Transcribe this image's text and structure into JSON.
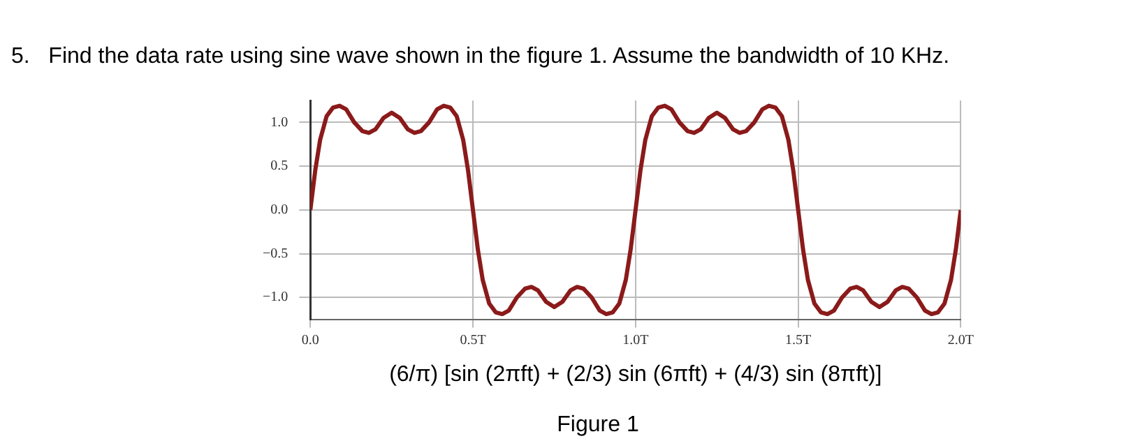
{
  "chart_data": {
    "type": "line",
    "title": "5.   Find the data rate using sine wave shown in the figure 1. Assume the bandwidth of 10 KHz.",
    "xlabel": "(6/π) [sin (2πft) + (2/3) sin (6πft) + (4/3) sin (8πft)]",
    "annotations": [
      "Figure 1"
    ],
    "x": [
      0,
      0.015,
      0.03,
      0.05,
      0.07,
      0.09,
      0.11,
      0.135,
      0.16,
      0.18,
      0.2,
      0.225,
      0.25,
      0.275,
      0.3,
      0.32,
      0.34,
      0.365,
      0.39,
      0.41,
      0.43,
      0.45,
      0.47,
      0.485,
      0.5,
      0.515,
      0.53,
      0.55,
      0.57,
      0.59,
      0.61,
      0.635,
      0.66,
      0.68,
      0.7,
      0.725,
      0.75,
      0.775,
      0.8,
      0.82,
      0.84,
      0.865,
      0.89,
      0.91,
      0.93,
      0.95,
      0.97,
      0.985,
      1,
      1.015,
      1.03,
      1.05,
      1.07,
      1.09,
      1.11,
      1.135,
      1.16,
      1.18,
      1.2,
      1.225,
      1.25,
      1.275,
      1.3,
      1.32,
      1.34,
      1.365,
      1.39,
      1.41,
      1.43,
      1.45,
      1.47,
      1.485,
      1.5,
      1.515,
      1.53,
      1.55,
      1.57,
      1.59,
      1.61,
      1.635,
      1.66,
      1.68,
      1.7,
      1.725,
      1.75,
      1.775,
      1.8,
      1.82,
      1.84,
      1.865,
      1.89,
      1.91,
      1.93,
      1.95,
      1.97,
      1.985,
      2
    ],
    "series": [
      {
        "color": "#8b1a1a",
        "values": [
          0,
          0.45,
          0.8,
          1.07,
          1.17,
          1.19,
          1.15,
          1.0,
          0.9,
          0.88,
          0.92,
          1.05,
          1.11,
          1.05,
          0.92,
          0.88,
          0.9,
          1.0,
          1.15,
          1.19,
          1.17,
          1.07,
          0.8,
          0.45,
          0,
          -0.45,
          -0.8,
          -1.07,
          -1.17,
          -1.19,
          -1.15,
          -1.0,
          -0.9,
          -0.88,
          -0.92,
          -1.05,
          -1.11,
          -1.05,
          -0.92,
          -0.88,
          -0.9,
          -1.0,
          -1.15,
          -1.19,
          -1.17,
          -1.07,
          -0.8,
          -0.45,
          0,
          0.45,
          0.8,
          1.07,
          1.17,
          1.19,
          1.15,
          1.0,
          0.9,
          0.88,
          0.92,
          1.05,
          1.11,
          1.05,
          0.92,
          0.88,
          0.9,
          1.0,
          1.15,
          1.19,
          1.17,
          1.07,
          0.8,
          0.45,
          0,
          -0.45,
          -0.8,
          -1.07,
          -1.17,
          -1.19,
          -1.15,
          -1.0,
          -0.9,
          -0.88,
          -0.92,
          -1.05,
          -1.11,
          -1.05,
          -0.92,
          -0.88,
          -0.9,
          -1.0,
          -1.15,
          -1.19,
          -1.17,
          -1.07,
          -0.8,
          -0.45,
          0
        ]
      }
    ],
    "xlim": [
      0,
      2
    ],
    "ylim": [
      -1.25,
      1.25
    ],
    "xticks": [
      {
        "value": 0,
        "label": "0.0"
      },
      {
        "value": 0.5,
        "label": "0.5T"
      },
      {
        "value": 1,
        "label": "1.0T"
      },
      {
        "value": 1.5,
        "label": "1.5T"
      },
      {
        "value": 2,
        "label": "2.0T"
      }
    ],
    "yticks": [
      {
        "value": -1,
        "label": "−1.0"
      },
      {
        "value": -0.5,
        "label": "−0.5"
      },
      {
        "value": 0,
        "label": "0.0"
      },
      {
        "value": 0.5,
        "label": "0.5"
      },
      {
        "value": 1,
        "label": "1.0"
      }
    ],
    "grid": true,
    "marker": "none",
    "line_style": "solid"
  }
}
